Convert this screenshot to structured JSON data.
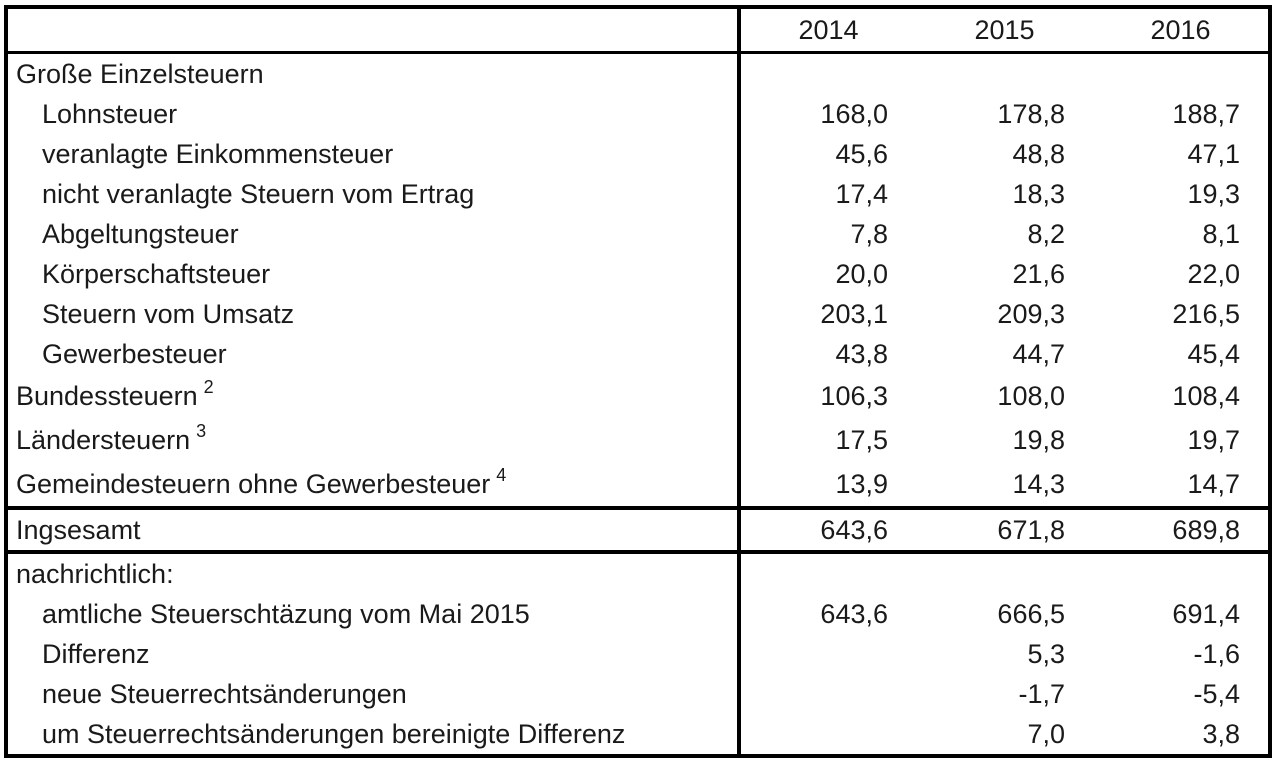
{
  "chart_data": {
    "type": "table",
    "columns": [
      "2014",
      "2015",
      "2016"
    ],
    "rows": [
      {
        "label": "Große Einzelsteuern",
        "indent": 0,
        "values": [
          "",
          "",
          ""
        ]
      },
      {
        "label": "Lohnsteuer",
        "indent": 1,
        "values": [
          "168,0",
          "178,8",
          "188,7"
        ]
      },
      {
        "label": "veranlagte Einkommensteuer",
        "indent": 1,
        "values": [
          "45,6",
          "48,8",
          "47,1"
        ]
      },
      {
        "label": "nicht veranlagte Steuern vom Ertrag",
        "indent": 1,
        "values": [
          "17,4",
          "18,3",
          "19,3"
        ]
      },
      {
        "label": "Abgeltungsteuer",
        "indent": 1,
        "values": [
          "7,8",
          "8,2",
          "8,1"
        ]
      },
      {
        "label": "Körperschaftsteuer",
        "indent": 1,
        "values": [
          "20,0",
          "21,6",
          "22,0"
        ]
      },
      {
        "label": "Steuern vom Umsatz",
        "indent": 1,
        "values": [
          "203,1",
          "209,3",
          "216,5"
        ]
      },
      {
        "label": "Gewerbesteuer",
        "indent": 1,
        "values": [
          "43,8",
          "44,7",
          "45,4"
        ]
      },
      {
        "label": "Bundessteuern",
        "sup": "2",
        "indent": 0,
        "values": [
          "106,3",
          "108,0",
          "108,4"
        ]
      },
      {
        "label": "Ländersteuern",
        "sup": "3",
        "indent": 0,
        "values": [
          "17,5",
          "19,8",
          "19,7"
        ]
      },
      {
        "label": "Gemeindesteuern ohne Gewerbesteuer",
        "sup": "4",
        "indent": 0,
        "values": [
          "13,9",
          "14,3",
          "14,7"
        ]
      },
      {
        "label": "Ingsesamt",
        "indent": 0,
        "values": [
          "643,6",
          "671,8",
          "689,8"
        ]
      },
      {
        "label": "nachrichtlich:",
        "indent": 0,
        "values": [
          "",
          "",
          ""
        ]
      },
      {
        "label": "amtliche Steuerschtäzung vom Mai 2015",
        "indent": 1,
        "values": [
          "643,6",
          "666,5",
          "691,4"
        ]
      },
      {
        "label": "Differenz",
        "indent": 1,
        "values": [
          "",
          "5,3",
          "-1,6"
        ]
      },
      {
        "label": "neue Steuerrechtsänderungen",
        "indent": 1,
        "values": [
          "",
          "-1,7",
          "-5,4"
        ]
      },
      {
        "label": "um Steuerrechtsänderungen bereinigte Differenz",
        "indent": 1,
        "values": [
          "",
          "7,0",
          "3,8"
        ]
      }
    ]
  }
}
